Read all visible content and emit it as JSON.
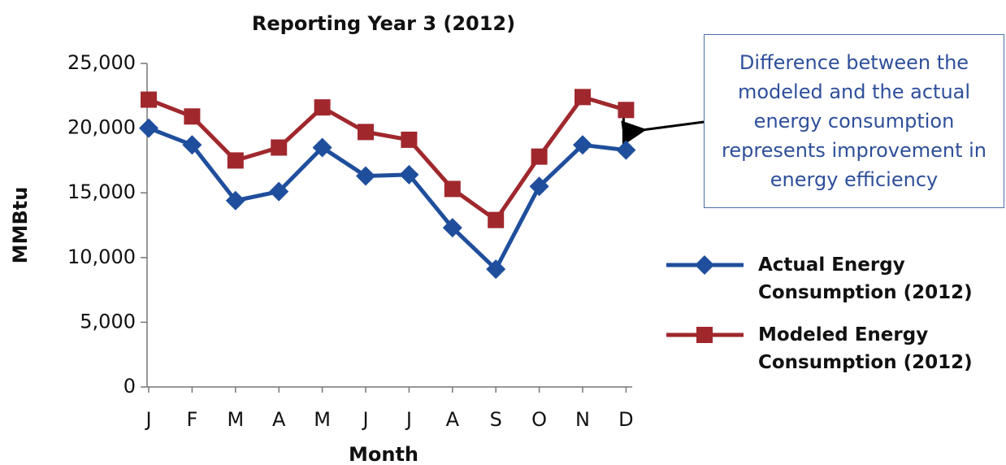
{
  "chart_data": {
    "type": "line",
    "title": "Reporting Year 3 (2012)",
    "x_label": "Month",
    "y_label": "MMBtu",
    "categories": [
      "J",
      "F",
      "M",
      "A",
      "M",
      "J",
      "J",
      "A",
      "S",
      "O",
      "N",
      "D"
    ],
    "series": [
      {
        "name": "Actual Energy Consumption (2012)",
        "color": "#1f4e9c",
        "marker": "diamond",
        "values": [
          20000,
          18700,
          14400,
          15100,
          18500,
          16300,
          16400,
          12300,
          9100,
          15500,
          18700,
          18300
        ]
      },
      {
        "name": "Modeled Energy Consumption (2012)",
        "color": "#a0282d",
        "marker": "square",
        "values": [
          22200,
          20900,
          17500,
          18500,
          21600,
          19700,
          19100,
          15300,
          12900,
          17800,
          22400,
          21400
        ]
      }
    ],
    "ylim": [
      0,
      25000
    ],
    "yticks": [
      0,
      {
        "value": 5000,
        "label": "5,000"
      },
      {
        "value": 10000,
        "label": "10,000"
      },
      {
        "value": 15000,
        "label": "15,000"
      },
      {
        "value": 20000,
        "label": "20,000"
      },
      {
        "value": 25000,
        "label": "25,000"
      }
    ],
    "annotation": "Difference between the modeled and the actual energy consumption represents improvement in energy efficiency",
    "legend_position": "right"
  }
}
